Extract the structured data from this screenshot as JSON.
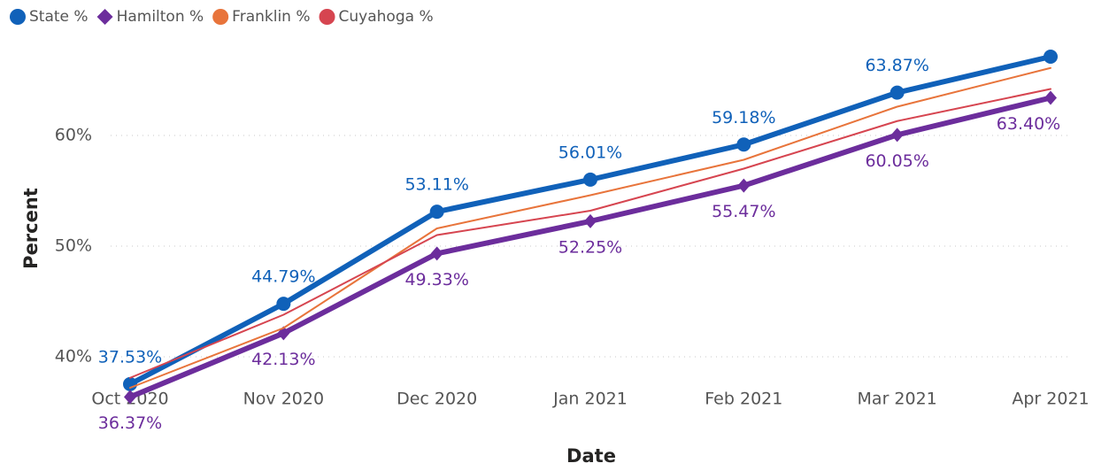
{
  "chart_data": {
    "type": "line",
    "x_label": "Date",
    "y_label": "Percent",
    "categories": [
      "Oct 2020",
      "Nov 2020",
      "Dec 2020",
      "Jan 2021",
      "Feb 2021",
      "Mar 2021",
      "Apr 2021"
    ],
    "ylim": [
      36.5,
      67.4
    ],
    "yticks": [
      {
        "value": 40,
        "label": "40%"
      },
      {
        "value": 50,
        "label": "50%"
      },
      {
        "value": 60,
        "label": "60%"
      }
    ],
    "grid": true,
    "legend": "top-left",
    "series": [
      {
        "name": "State %",
        "color": "#1061b9",
        "width": 6,
        "marker": "circle",
        "values": [
          37.53,
          44.79,
          53.11,
          56.01,
          59.18,
          63.87,
          67.12
        ],
        "value_labels": [
          "37.53%",
          "44.79%",
          "53.11%",
          "56.01%",
          "59.18%",
          "63.87%",
          null
        ],
        "label_side": "above"
      },
      {
        "name": "Hamilton %",
        "color": "#6c2d9c",
        "width": 6,
        "marker": "diamond",
        "values": [
          36.37,
          42.13,
          49.33,
          52.25,
          55.47,
          60.05,
          63.4
        ],
        "value_labels": [
          "36.37%",
          "42.13%",
          "49.33%",
          "52.25%",
          "55.47%",
          "60.05%",
          "63.40%"
        ],
        "label_side": "below"
      },
      {
        "name": "Franklin %",
        "color": "#e8743b",
        "width": 2,
        "values": [
          37.2,
          42.6,
          51.6,
          54.6,
          57.8,
          62.6,
          66.1
        ]
      },
      {
        "name": "Cuyahoga %",
        "color": "#d64550",
        "width": 2,
        "values": [
          38.1,
          43.8,
          51.0,
          53.2,
          57.0,
          61.3,
          64.2
        ]
      }
    ]
  }
}
